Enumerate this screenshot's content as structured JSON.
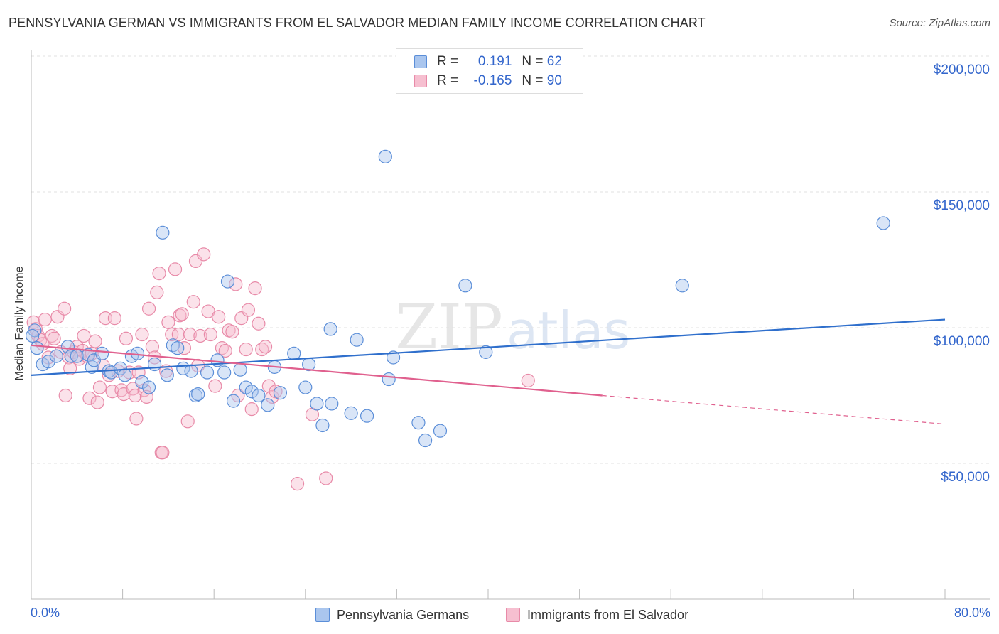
{
  "title": "PENNSYLVANIA GERMAN VS IMMIGRANTS FROM EL SALVADOR MEDIAN FAMILY INCOME CORRELATION CHART",
  "source": "Source: ZipAtlas.com",
  "watermark": {
    "zip": "ZIP",
    "atlas": "atlas"
  },
  "legend": {
    "rows": [
      {
        "r_label": "R =",
        "r_value": "0.191",
        "n_label": "N =",
        "n_value": "62"
      },
      {
        "r_label": "R =",
        "r_value": "-0.165",
        "n_label": "N =",
        "n_value": "90"
      }
    ]
  },
  "colors": {
    "blue_fill": "#aac6ee",
    "blue_stroke": "#5b8ed8",
    "blue_line": "#2f6fcc",
    "pink_fill": "#f6bfd0",
    "pink_stroke": "#e88aa8",
    "pink_line": "#e0608e",
    "tick_label": "#3366cc",
    "grid": "#e0e0e0"
  },
  "chart_data": {
    "type": "scatter",
    "xlabel": "",
    "ylabel": "Median Family Income",
    "xlim": [
      0,
      80
    ],
    "ylim": [
      0,
      205000
    ],
    "x_tick_labels": {
      "min": "0.0%",
      "max": "80.0%"
    },
    "y_ticks": [
      {
        "value": 50000,
        "label": "$50,000"
      },
      {
        "value": 100000,
        "label": "$100,000"
      },
      {
        "value": 150000,
        "label": "$150,000"
      },
      {
        "value": 200000,
        "label": "$200,000"
      }
    ],
    "series": [
      {
        "name": "Pennsylvania Germans",
        "color": "blue",
        "R": 0.191,
        "N": 62,
        "trend": {
          "x_start": 0,
          "y_start": 82500,
          "x_end": 80,
          "y_end": 103000
        },
        "points": [
          [
            0.3,
            99000
          ],
          [
            0.5,
            92500
          ],
          [
            1.0,
            86500
          ],
          [
            1.5,
            87500
          ],
          [
            2.2,
            89500
          ],
          [
            3.2,
            93000
          ],
          [
            3.5,
            89500
          ],
          [
            4.0,
            89500
          ],
          [
            5.0,
            90000
          ],
          [
            5.3,
            85500
          ],
          [
            5.5,
            88000
          ],
          [
            6.2,
            90500
          ],
          [
            6.8,
            84000
          ],
          [
            7.0,
            83500
          ],
          [
            7.8,
            85000
          ],
          [
            8.2,
            82500
          ],
          [
            8.8,
            89500
          ],
          [
            9.3,
            90500
          ],
          [
            9.7,
            80000
          ],
          [
            10.3,
            78000
          ],
          [
            10.8,
            86500
          ],
          [
            11.5,
            135000
          ],
          [
            11.9,
            82500
          ],
          [
            12.4,
            93500
          ],
          [
            12.8,
            92500
          ],
          [
            13.3,
            85000
          ],
          [
            14.0,
            84000
          ],
          [
            14.4,
            75000
          ],
          [
            14.6,
            75500
          ],
          [
            15.4,
            83500
          ],
          [
            16.3,
            88000
          ],
          [
            16.9,
            83500
          ],
          [
            17.2,
            117000
          ],
          [
            17.7,
            73000
          ],
          [
            18.3,
            84500
          ],
          [
            18.8,
            78000
          ],
          [
            19.3,
            76500
          ],
          [
            19.9,
            75000
          ],
          [
            20.7,
            71500
          ],
          [
            21.3,
            85500
          ],
          [
            21.8,
            76000
          ],
          [
            23.0,
            90500
          ],
          [
            24.0,
            78000
          ],
          [
            24.3,
            86500
          ],
          [
            25.0,
            72000
          ],
          [
            25.5,
            64000
          ],
          [
            26.2,
            99500
          ],
          [
            26.3,
            72000
          ],
          [
            28.0,
            68500
          ],
          [
            28.5,
            95500
          ],
          [
            29.4,
            67500
          ],
          [
            31.0,
            163000
          ],
          [
            31.3,
            81000
          ],
          [
            31.7,
            89000
          ],
          [
            33.9,
            65000
          ],
          [
            34.5,
            58500
          ],
          [
            35.8,
            62000
          ],
          [
            38.0,
            115500
          ],
          [
            39.8,
            91000
          ],
          [
            57.0,
            115500
          ],
          [
            74.6,
            138500
          ],
          [
            0.1,
            97000
          ]
        ]
      },
      {
        "name": "Immigrants from El Salvador",
        "color": "pink",
        "R": -0.165,
        "N": 90,
        "trend": {
          "x_start": 0,
          "y_start": 93500,
          "x_end": 50,
          "y_end": 75000,
          "dash_x_end": 80,
          "dash_y_end": 64500
        },
        "points": [
          [
            0.2,
            102000
          ],
          [
            0.4,
            99500
          ],
          [
            0.6,
            97000
          ],
          [
            0.8,
            95500
          ],
          [
            1.0,
            94000
          ],
          [
            1.2,
            103000
          ],
          [
            1.5,
            89000
          ],
          [
            1.8,
            97000
          ],
          [
            2.0,
            96000
          ],
          [
            2.3,
            104000
          ],
          [
            2.6,
            91000
          ],
          [
            2.9,
            107000
          ],
          [
            3.0,
            75000
          ],
          [
            3.3,
            89000
          ],
          [
            3.4,
            85000
          ],
          [
            3.7,
            91000
          ],
          [
            4.0,
            93000
          ],
          [
            4.2,
            88500
          ],
          [
            4.5,
            91500
          ],
          [
            4.6,
            97000
          ],
          [
            4.9,
            89500
          ],
          [
            5.1,
            74000
          ],
          [
            5.3,
            90500
          ],
          [
            5.6,
            95000
          ],
          [
            5.8,
            72500
          ],
          [
            6.0,
            78000
          ],
          [
            6.3,
            86000
          ],
          [
            6.5,
            103500
          ],
          [
            6.8,
            82500
          ],
          [
            7.1,
            76500
          ],
          [
            7.3,
            103500
          ],
          [
            7.6,
            84000
          ],
          [
            7.9,
            77000
          ],
          [
            8.1,
            75500
          ],
          [
            8.3,
            96000
          ],
          [
            8.6,
            83500
          ],
          [
            8.9,
            77500
          ],
          [
            9.1,
            75000
          ],
          [
            9.2,
            66500
          ],
          [
            9.4,
            83500
          ],
          [
            9.7,
            97500
          ],
          [
            9.9,
            77000
          ],
          [
            10.1,
            74500
          ],
          [
            10.3,
            107000
          ],
          [
            10.6,
            93000
          ],
          [
            10.8,
            89000
          ],
          [
            11.0,
            113000
          ],
          [
            11.2,
            120000
          ],
          [
            11.4,
            54000
          ],
          [
            11.5,
            54000
          ],
          [
            11.8,
            84000
          ],
          [
            12.0,
            102000
          ],
          [
            12.3,
            97500
          ],
          [
            12.6,
            121500
          ],
          [
            12.9,
            97500
          ],
          [
            13.0,
            104500
          ],
          [
            13.2,
            105000
          ],
          [
            13.4,
            92500
          ],
          [
            13.7,
            65500
          ],
          [
            13.9,
            97500
          ],
          [
            14.2,
            109500
          ],
          [
            14.4,
            124500
          ],
          [
            14.6,
            86000
          ],
          [
            14.8,
            97000
          ],
          [
            15.1,
            127000
          ],
          [
            15.5,
            106000
          ],
          [
            15.7,
            97500
          ],
          [
            16.1,
            78500
          ],
          [
            16.4,
            104000
          ],
          [
            16.7,
            92500
          ],
          [
            17.0,
            91500
          ],
          [
            17.3,
            99000
          ],
          [
            17.6,
            98500
          ],
          [
            17.9,
            116000
          ],
          [
            18.1,
            75000
          ],
          [
            18.4,
            103500
          ],
          [
            18.8,
            92000
          ],
          [
            19.0,
            106500
          ],
          [
            19.3,
            70000
          ],
          [
            19.6,
            114500
          ],
          [
            19.9,
            101500
          ],
          [
            20.2,
            92000
          ],
          [
            20.5,
            93000
          ],
          [
            20.8,
            78500
          ],
          [
            21.1,
            74500
          ],
          [
            21.4,
            76500
          ],
          [
            23.3,
            42500
          ],
          [
            24.6,
            68000
          ],
          [
            25.8,
            44500
          ],
          [
            43.5,
            80500
          ]
        ]
      }
    ]
  },
  "bottom_legend": [
    "Pennsylvania Germans",
    "Immigrants from El Salvador"
  ]
}
